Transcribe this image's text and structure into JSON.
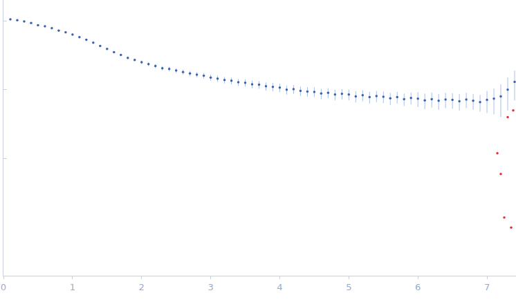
{
  "chart_data": {
    "type": "scatter",
    "log": "y",
    "grid": false,
    "tick_labels": "x",
    "xlim": [
      0,
      7.42
    ],
    "xticks": [
      0,
      1,
      2,
      3,
      4,
      5,
      6,
      7
    ],
    "ylim": [
      0.0002,
      2
    ],
    "yticks": [
      0.01,
      0.1,
      1
    ],
    "series": [
      {
        "color": "#3a62b4",
        "marker": "circle",
        "x": [
          0.1,
          0.2,
          0.3,
          0.4,
          0.5,
          0.6,
          0.7,
          0.8,
          0.9,
          1.0,
          1.1,
          1.2,
          1.3,
          1.4,
          1.5,
          1.6,
          1.7,
          1.8,
          1.9,
          2.0,
          2.1,
          2.2,
          2.3,
          2.4,
          2.5,
          2.6,
          2.7,
          2.8,
          2.9,
          3.0,
          3.1,
          3.2,
          3.3,
          3.4,
          3.5,
          3.6,
          3.7,
          3.8,
          3.9,
          4.0,
          4.1,
          4.2,
          4.3,
          4.4,
          4.5,
          4.6,
          4.7,
          4.8,
          4.9,
          5.0,
          5.1,
          5.2,
          5.3,
          5.4,
          5.5,
          5.6,
          5.7,
          5.8,
          5.9,
          6.0,
          6.1,
          6.2,
          6.3,
          6.4,
          6.5,
          6.6,
          6.7,
          6.8,
          6.9,
          7.0,
          7.1,
          7.2,
          7.3,
          7.4
        ],
        "values": [
          1.05,
          1.02,
          0.98,
          0.93,
          0.86,
          0.83,
          0.78,
          0.72,
          0.68,
          0.63,
          0.58,
          0.53,
          0.48,
          0.43,
          0.39,
          0.35,
          0.32,
          0.29,
          0.27,
          0.25,
          0.235,
          0.22,
          0.205,
          0.2,
          0.19,
          0.18,
          0.172,
          0.165,
          0.16,
          0.15,
          0.145,
          0.138,
          0.135,
          0.128,
          0.126,
          0.12,
          0.118,
          0.112,
          0.11,
          0.107,
          0.1,
          0.102,
          0.096,
          0.094,
          0.093,
          0.088,
          0.09,
          0.085,
          0.087,
          0.085,
          0.08,
          0.083,
          0.078,
          0.081,
          0.079,
          0.075,
          0.078,
          0.073,
          0.076,
          0.074,
          0.07,
          0.073,
          0.069,
          0.072,
          0.071,
          0.068,
          0.072,
          0.069,
          0.066,
          0.071,
          0.074,
          0.08,
          0.1,
          0.13
        ],
        "errors": [
          0.02,
          0.02,
          0.02,
          0.02,
          0.02,
          0.02,
          0.02,
          0.02,
          0.02,
          0.02,
          0.02,
          0.02,
          0.015,
          0.015,
          0.015,
          0.012,
          0.012,
          0.012,
          0.012,
          0.015,
          0.015,
          0.015,
          0.015,
          0.015,
          0.015,
          0.015,
          0.015,
          0.015,
          0.015,
          0.015,
          0.015,
          0.015,
          0.015,
          0.015,
          0.015,
          0.015,
          0.015,
          0.015,
          0.015,
          0.015,
          0.015,
          0.015,
          0.015,
          0.015,
          0.015,
          0.015,
          0.015,
          0.015,
          0.015,
          0.015,
          0.015,
          0.015,
          0.015,
          0.015,
          0.015,
          0.015,
          0.015,
          0.015,
          0.015,
          0.018,
          0.018,
          0.018,
          0.018,
          0.018,
          0.018,
          0.018,
          0.018,
          0.018,
          0.018,
          0.025,
          0.03,
          0.04,
          0.05,
          0.06
        ]
      },
      {
        "color": "#e0303a",
        "marker": "circle",
        "x": [
          7.15,
          7.2,
          7.25,
          7.3,
          7.35,
          7.38
        ],
        "values": [
          0.012,
          0.006,
          0.0014,
          0.04,
          0.001,
          0.05
        ]
      }
    ]
  }
}
